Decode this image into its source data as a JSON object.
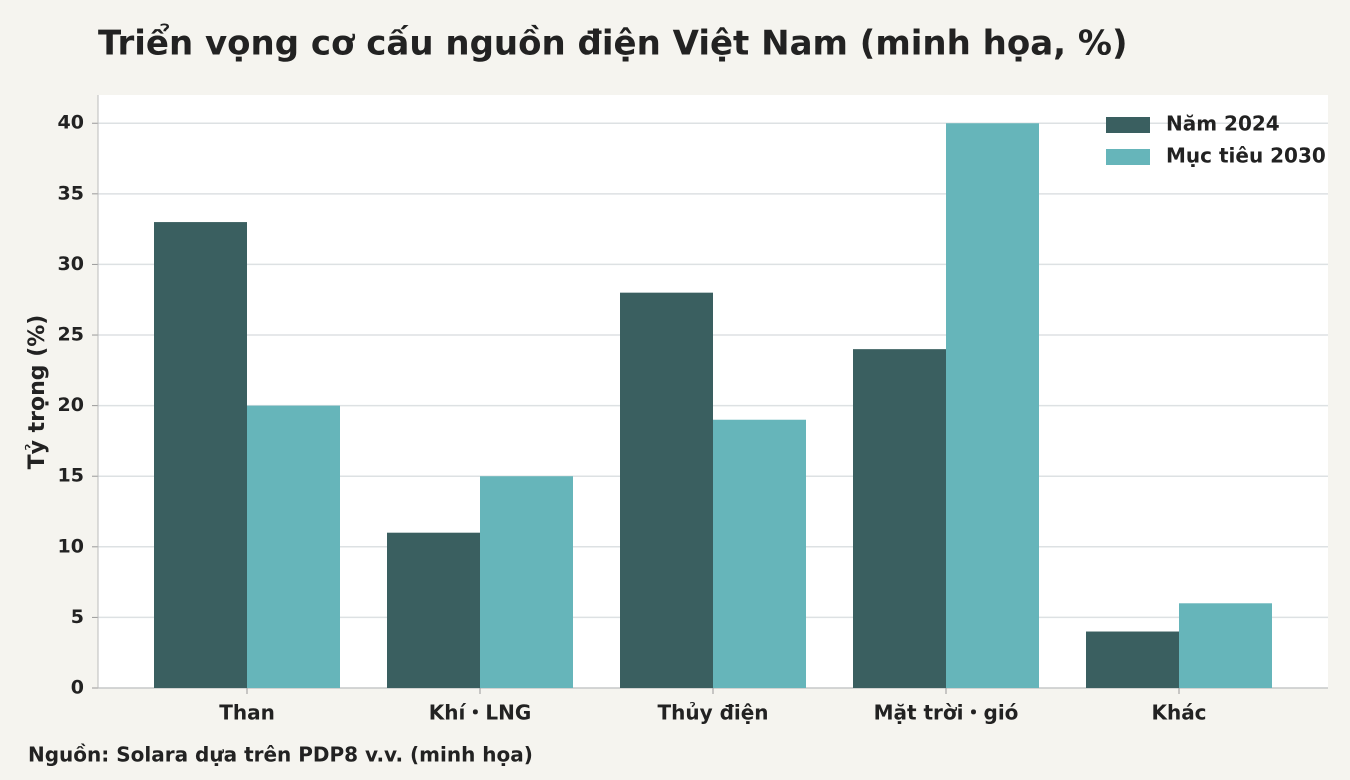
{
  "chart_data": {
    "type": "bar",
    "title": "Triển vọng cơ cấu nguồn điện Việt Nam (minh họa, %)",
    "y_label": "Tỷ trọng (%)",
    "source": "Nguồn: Solara dựa trên PDP8 v.v. (minh họa)",
    "categories": [
      "Than",
      "Khí・LNG",
      "Thủy điện",
      "Mặt trời・gió",
      "Khác"
    ],
    "series": [
      {
        "name": "Năm 2024",
        "color": "#3a5f60",
        "values": [
          33,
          11,
          28,
          24,
          4
        ]
      },
      {
        "name": "Mục tiêu 2030",
        "color": "#66b5ba",
        "values": [
          20,
          15,
          19,
          40,
          6
        ]
      }
    ],
    "ylim": [
      0,
      42
    ],
    "yticks": [
      0,
      5,
      10,
      15,
      20,
      25,
      30,
      35,
      40
    ],
    "grid": true,
    "legend": "upper right"
  }
}
